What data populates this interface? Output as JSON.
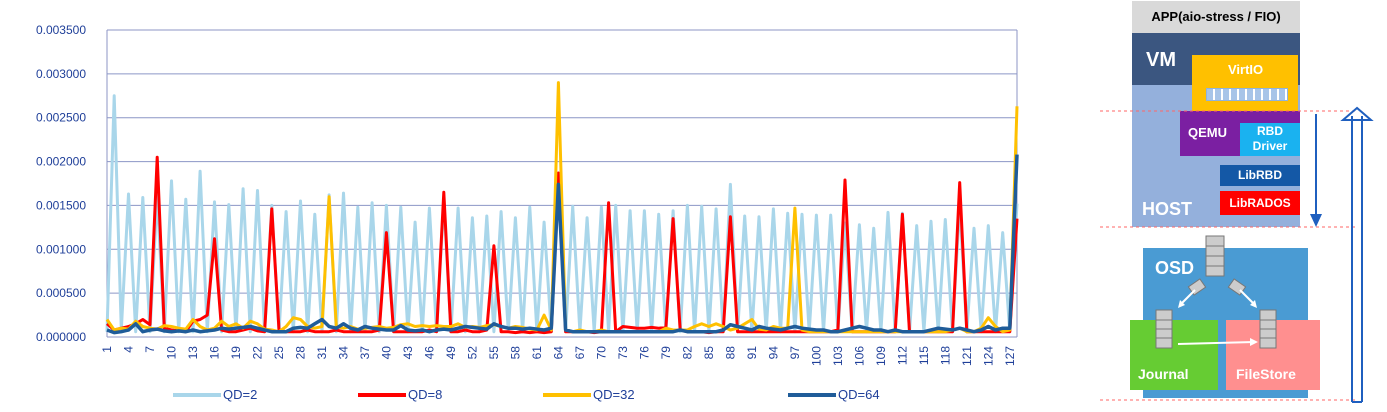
{
  "chart_data": {
    "type": "line",
    "yticks": [
      "0.000000",
      "0.000500",
      "0.001000",
      "0.001500",
      "0.002000",
      "0.002500",
      "0.003000",
      "0.003500"
    ],
    "ylim": [
      0,
      0.0035
    ],
    "x_ticks": [
      1,
      4,
      7,
      10,
      13,
      16,
      19,
      22,
      25,
      28,
      31,
      34,
      37,
      40,
      43,
      46,
      49,
      52,
      55,
      58,
      61,
      64,
      67,
      70,
      73,
      76,
      79,
      82,
      85,
      88,
      91,
      94,
      97,
      100,
      103,
      106,
      109,
      112,
      115,
      118,
      121,
      124,
      127
    ],
    "x_max": 128,
    "grid": true,
    "legend_position": "bottom",
    "series": [
      {
        "name": "QD=2",
        "color": "#a9d6ea",
        "values": [
          6e-05,
          0.00275,
          8e-05,
          0.00163,
          6e-05,
          0.00159,
          6e-05,
          0.00162,
          6e-05,
          0.00178,
          6e-05,
          0.00157,
          6e-05,
          0.00189,
          6e-05,
          0.00154,
          6e-05,
          0.00151,
          6e-05,
          0.00169,
          6e-05,
          0.00167,
          6e-05,
          0.0015,
          6e-05,
          0.00143,
          6e-05,
          0.00155,
          6e-05,
          0.0014,
          6e-05,
          0.00162,
          6e-05,
          0.00164,
          6e-05,
          0.00148,
          6e-05,
          0.00153,
          6e-05,
          0.0015,
          6e-05,
          0.00148,
          6e-05,
          0.00131,
          6e-05,
          0.00147,
          6e-05,
          0.00155,
          6e-05,
          0.00147,
          6e-05,
          0.00136,
          6e-05,
          0.00138,
          6e-05,
          0.00143,
          6e-05,
          0.00136,
          6e-05,
          0.00148,
          6e-05,
          0.00131,
          6e-05,
          0.00178,
          6e-05,
          0.00149,
          6e-05,
          0.00136,
          6e-05,
          0.00148,
          6e-05,
          0.0015,
          6e-05,
          0.00144,
          6e-05,
          0.00144,
          6e-05,
          0.0014,
          6e-05,
          0.00144,
          6e-05,
          0.0015,
          6e-05,
          0.00149,
          6e-05,
          0.00146,
          6e-05,
          0.00174,
          6e-05,
          0.00138,
          6e-05,
          0.00137,
          6e-05,
          0.00146,
          6e-05,
          0.00141,
          6e-05,
          0.0014,
          6e-05,
          0.00139,
          6e-05,
          0.00139,
          6e-05,
          0.0013,
          6e-05,
          0.00128,
          6e-05,
          0.00124,
          6e-05,
          0.00142,
          6e-05,
          0.00141,
          6e-05,
          0.00127,
          6e-05,
          0.00132,
          6e-05,
          0.00134,
          6e-05,
          0.00152,
          6e-05,
          0.00124,
          6e-05,
          0.00127,
          6e-05,
          0.00119,
          6e-05,
          0.00152
        ]
      },
      {
        "name": "QD=8",
        "color": "#ff0000",
        "values": [
          0.00015,
          8e-05,
          0.0001,
          0.00012,
          0.00015,
          0.0002,
          0.00014,
          0.00205,
          0.0001,
          8e-05,
          7e-05,
          6e-05,
          0.00018,
          0.0002,
          0.00025,
          0.00112,
          8e-05,
          6e-05,
          6e-05,
          8e-05,
          0.0001,
          7e-05,
          6e-05,
          0.00146,
          8e-05,
          6e-05,
          6e-05,
          6e-05,
          8e-05,
          6e-05,
          6e-05,
          6e-05,
          8e-05,
          6e-05,
          6e-05,
          6e-05,
          6e-05,
          6e-05,
          8e-05,
          0.00119,
          6e-05,
          6e-05,
          6e-05,
          6e-05,
          6e-05,
          8e-05,
          6e-05,
          0.00165,
          6e-05,
          6e-05,
          8e-05,
          6e-05,
          6e-05,
          8e-05,
          0.00104,
          6e-05,
          6e-05,
          5e-05,
          6e-05,
          5e-05,
          6e-05,
          5e-05,
          6e-05,
          0.00187,
          6e-05,
          6e-05,
          6e-05,
          6e-05,
          5e-05,
          6e-05,
          0.00153,
          6e-05,
          0.00012,
          0.00011,
          0.0001,
          0.0001,
          0.00011,
          0.0001,
          0.00011,
          0.00135,
          8e-05,
          6e-05,
          6e-05,
          6e-05,
          5e-05,
          6e-05,
          6e-05,
          0.00137,
          6e-05,
          6e-05,
          6e-05,
          6e-05,
          6e-05,
          6e-05,
          6e-05,
          6e-05,
          6e-05,
          6e-05,
          6e-05,
          6e-05,
          6e-05,
          6e-05,
          8e-05,
          0.00179,
          6e-05,
          6e-05,
          6e-05,
          6e-05,
          6e-05,
          6e-05,
          6e-05,
          0.0014,
          6e-05,
          6e-05,
          6e-05,
          6e-05,
          6e-05,
          6e-05,
          6e-05,
          0.00176,
          6e-05,
          6e-05,
          6e-05,
          6e-05,
          6e-05,
          6e-05,
          6e-05,
          0.00135
        ]
      },
      {
        "name": "QD=32",
        "color": "#ffc000",
        "values": [
          0.0002,
          8e-05,
          0.0001,
          9e-05,
          0.00018,
          0.00012,
          0.0001,
          9e-05,
          0.00013,
          0.00012,
          0.0001,
          9e-05,
          0.0002,
          0.00012,
          8e-05,
          0.0001,
          0.00018,
          0.00012,
          0.00015,
          0.0001,
          0.00018,
          0.00015,
          9e-05,
          8e-05,
          6e-05,
          0.00012,
          0.00022,
          0.0002,
          0.00012,
          0.0001,
          0.00012,
          0.0016,
          0.00012,
          0.0001,
          0.00012,
          9e-05,
          0.0001,
          0.00011,
          0.00012,
          0.0001,
          0.00011,
          0.00014,
          0.00015,
          0.00012,
          0.00013,
          0.00012,
          0.00013,
          0.00012,
          0.00012,
          0.00015,
          0.00011,
          0.00012,
          0.00011,
          0.00013,
          0.00014,
          0.00012,
          0.0001,
          0.00012,
          0.00011,
          9e-05,
          8e-05,
          0.00025,
          8e-05,
          0.0029,
          8e-05,
          6e-05,
          8e-05,
          6e-05,
          6e-05,
          8e-05,
          6e-05,
          6e-05,
          6e-05,
          6e-05,
          6e-05,
          6e-05,
          6e-05,
          6e-05,
          0.0001,
          8e-05,
          8e-05,
          8e-05,
          0.00012,
          0.00015,
          0.00012,
          0.00015,
          0.00012,
          8e-05,
          0.0001,
          0.00015,
          0.0002,
          9e-05,
          8e-05,
          0.00012,
          0.0001,
          0.0001,
          0.00147,
          8e-05,
          6e-05,
          6e-05,
          6e-05,
          6e-05,
          6e-05,
          6e-05,
          6e-05,
          6e-05,
          6e-05,
          6e-05,
          6e-05,
          6e-05,
          6e-05,
          6e-05,
          6e-05,
          6e-05,
          6e-05,
          6e-05,
          6e-05,
          6e-05,
          8e-05,
          0.0001,
          6e-05,
          6e-05,
          0.0001,
          0.00022,
          0.00012,
          6e-05,
          8e-05,
          0.00263
        ]
      },
      {
        "name": "QD=64",
        "color": "#1f5c99",
        "values": [
          8e-05,
          5e-05,
          6e-05,
          8e-05,
          0.00015,
          6e-05,
          8e-05,
          9e-05,
          7e-05,
          6e-05,
          7e-05,
          6e-05,
          8e-05,
          6e-05,
          7e-05,
          8e-05,
          0.0001,
          9e-05,
          0.0001,
          0.00011,
          0.00012,
          0.0001,
          8e-05,
          6e-05,
          6e-05,
          6e-05,
          0.0001,
          0.00011,
          0.0001,
          0.00015,
          0.0002,
          0.00012,
          0.0001,
          0.00015,
          0.0001,
          8e-05,
          0.00012,
          0.0001,
          9e-05,
          8e-05,
          8e-05,
          0.00013,
          8e-05,
          7e-05,
          8e-05,
          6e-05,
          8e-05,
          9e-05,
          8e-05,
          0.0001,
          0.00012,
          0.00011,
          0.0001,
          9e-05,
          0.00015,
          0.00012,
          0.0001,
          0.0001,
          9e-05,
          0.0001,
          9e-05,
          8e-05,
          0.0001,
          0.00174,
          8e-05,
          6e-05,
          6e-05,
          6e-05,
          6e-05,
          6e-05,
          6e-05,
          6e-05,
          6e-05,
          6e-05,
          6e-05,
          6e-05,
          6e-05,
          6e-05,
          6e-05,
          6e-05,
          8e-05,
          6e-05,
          6e-05,
          6e-05,
          6e-05,
          6e-05,
          8e-05,
          0.00014,
          0.00012,
          0.0001,
          8e-05,
          0.00012,
          0.0001,
          9e-05,
          8e-05,
          0.0001,
          0.00012,
          0.0001,
          9e-05,
          8e-05,
          8e-05,
          6e-05,
          6e-05,
          8e-05,
          0.0001,
          0.00012,
          0.0001,
          8e-05,
          8e-05,
          6e-05,
          8e-05,
          6e-05,
          6e-05,
          6e-05,
          6e-05,
          8e-05,
          0.0001,
          9e-05,
          8e-05,
          0.0001,
          8e-05,
          6e-05,
          8e-05,
          0.00012,
          8e-05,
          0.0001,
          0.0001,
          0.00208
        ]
      }
    ]
  },
  "diagram": {
    "app": "APP(aio-stress / FIO)",
    "vm": "VM",
    "virtio": "VirtIO",
    "qemu": "QEMU",
    "rbd_driver": "RBD Driver",
    "librbd": "LibRBD",
    "librados": "LibRADOS",
    "host": "HOST",
    "osd": "OSD",
    "journal": "Journal",
    "filestore": "FileStore",
    "colors": {
      "app": "#d9d9d9",
      "vm": "#3b5680",
      "virtio": "#ffc000",
      "host": "#94b0dc",
      "qemu": "#7b1fa2",
      "rbd_driver": "#1ab2f0",
      "librbd": "#1458a6",
      "librados": "#ff0000",
      "osd": "#4a9bd3",
      "journal": "#66cc33",
      "filestore": "#ff8f8f",
      "arrow": "#1f5fbf"
    }
  }
}
